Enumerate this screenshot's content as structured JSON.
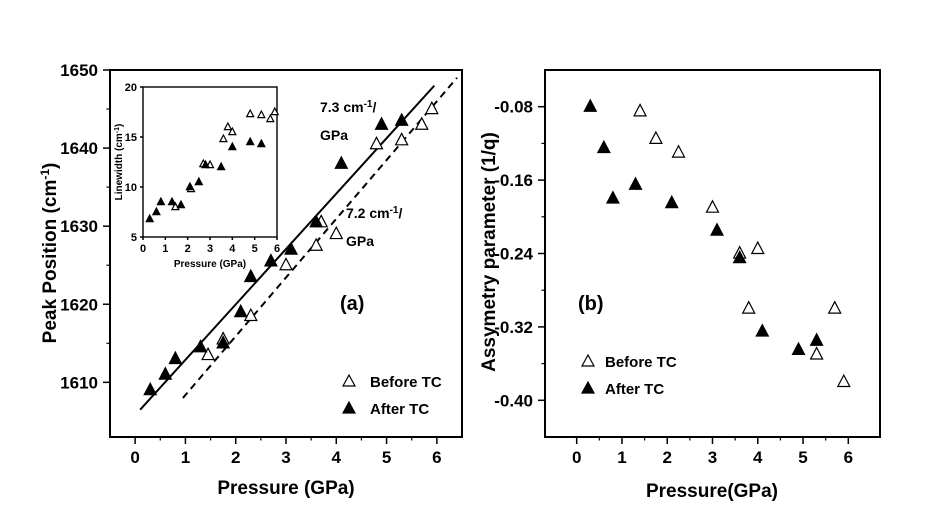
{
  "chart_data": [
    {
      "panel": "a",
      "type": "scatter",
      "panel_label": "(a)",
      "xlabel": "Pressure (GPa)",
      "ylabel_main": "Peak Position (cm",
      "ylabel_sup": "-1",
      "ylabel_close": ")",
      "xlim": [
        -0.5,
        6.5
      ],
      "ylim": [
        1603,
        1650
      ],
      "xticks": [
        0,
        1,
        2,
        3,
        4,
        5,
        6
      ],
      "yticks": [
        1610,
        1620,
        1630,
        1640,
        1650
      ],
      "series": [
        {
          "name": "Before TC",
          "marker": "open-triangle",
          "x": [
            1.45,
            1.75,
            2.3,
            3.0,
            3.6,
            3.7,
            4.0,
            4.8,
            5.3,
            5.7,
            5.9
          ],
          "y": [
            1613.5,
            1615.5,
            1618.5,
            1625,
            1627.5,
            1630.5,
            1629,
            1640.5,
            1641,
            1643,
            1645
          ]
        },
        {
          "name": "After TC",
          "marker": "filled-triangle",
          "x": [
            0.3,
            0.6,
            0.8,
            1.3,
            1.75,
            2.1,
            2.3,
            2.7,
            3.1,
            3.6,
            4.1,
            4.9,
            5.3
          ],
          "y": [
            1609,
            1611,
            1613,
            1614.5,
            1615,
            1619,
            1623.5,
            1625.5,
            1627,
            1630.5,
            1638,
            1643,
            1643.5
          ]
        }
      ],
      "fits": [
        {
          "style": "solid",
          "x": [
            0.1,
            5.95
          ],
          "y": [
            1606.5,
            1648
          ]
        },
        {
          "style": "dashed",
          "x": [
            0.95,
            6.4
          ],
          "y": [
            1608,
            1649
          ]
        }
      ],
      "annotations": [
        {
          "text": "7.3 cm",
          "sup": "-1",
          "tail": "/",
          "line2": "GPa",
          "x": 3.85,
          "y": 1646
        },
        {
          "text": "7.2 cm",
          "sup": "-1",
          "tail": "/",
          "line2": "GPa",
          "x": 4.35,
          "y": 1632.5
        }
      ],
      "inset": {
        "type": "scatter",
        "xlabel": "Pressure (GPa)",
        "ylabel_main": "Linewidth (cm",
        "ylabel_sup": "-1",
        "ylabel_close": ")",
        "xlim": [
          0,
          6
        ],
        "ylim": [
          5,
          20
        ],
        "xticks": [
          0,
          1,
          2,
          3,
          4,
          5,
          6
        ],
        "yticks": [
          5,
          10,
          15,
          20
        ],
        "series": [
          {
            "name": "Before TC",
            "marker": "open-triangle",
            "x": [
              1.45,
              2.15,
              2.7,
              3.0,
              3.6,
              3.8,
              4.0,
              4.8,
              5.3,
              5.7,
              5.9
            ],
            "y": [
              8,
              9.8,
              12.3,
              12.2,
              14.8,
              16,
              15.5,
              17.3,
              17.2,
              16.8,
              17.5
            ]
          },
          {
            "name": "After TC",
            "marker": "filled-triangle",
            "x": [
              0.3,
              0.6,
              0.8,
              1.3,
              1.7,
              2.1,
              2.5,
              2.8,
              3.5,
              4.0,
              4.8,
              5.3
            ],
            "y": [
              6.8,
              7.5,
              8.5,
              8.5,
              8.2,
              10,
              10.5,
              12.2,
              12,
              14,
              14.5,
              14.3
            ]
          }
        ]
      },
      "legend": [
        "Before TC",
        "After TC"
      ]
    },
    {
      "panel": "b",
      "type": "scatter",
      "panel_label": "(b)",
      "xlabel": "Pressure(GPa)",
      "ylabel": "Assymetry parameter (1/q)",
      "xlim": [
        -0.7,
        6.7
      ],
      "ylim": [
        -0.44,
        -0.04
      ],
      "xticks": [
        0,
        1,
        2,
        3,
        4,
        5,
        6
      ],
      "yticks": [
        -0.08,
        -0.16,
        -0.24,
        -0.32,
        -0.4
      ],
      "yticklabels": [
        "-0.08",
        "-0.16",
        "-0.24",
        "-0.32",
        "-0.40"
      ],
      "series": [
        {
          "name": "Before TC",
          "marker": "open-triangle",
          "x": [
            1.4,
            1.75,
            2.25,
            3.0,
            3.6,
            3.8,
            4.0,
            5.3,
            5.7,
            5.9
          ],
          "y": [
            -0.085,
            -0.115,
            -0.13,
            -0.19,
            -0.24,
            -0.3,
            -0.235,
            -0.35,
            -0.3,
            -0.38
          ]
        },
        {
          "name": "After TC",
          "marker": "filled-triangle",
          "x": [
            0.3,
            0.6,
            0.8,
            1.3,
            2.1,
            3.1,
            3.6,
            4.1,
            4.9,
            5.3
          ],
          "y": [
            -0.08,
            -0.125,
            -0.18,
            -0.165,
            -0.185,
            -0.215,
            -0.245,
            -0.325,
            -0.345,
            -0.335
          ]
        }
      ],
      "legend": [
        "Before TC",
        "After TC"
      ]
    }
  ]
}
